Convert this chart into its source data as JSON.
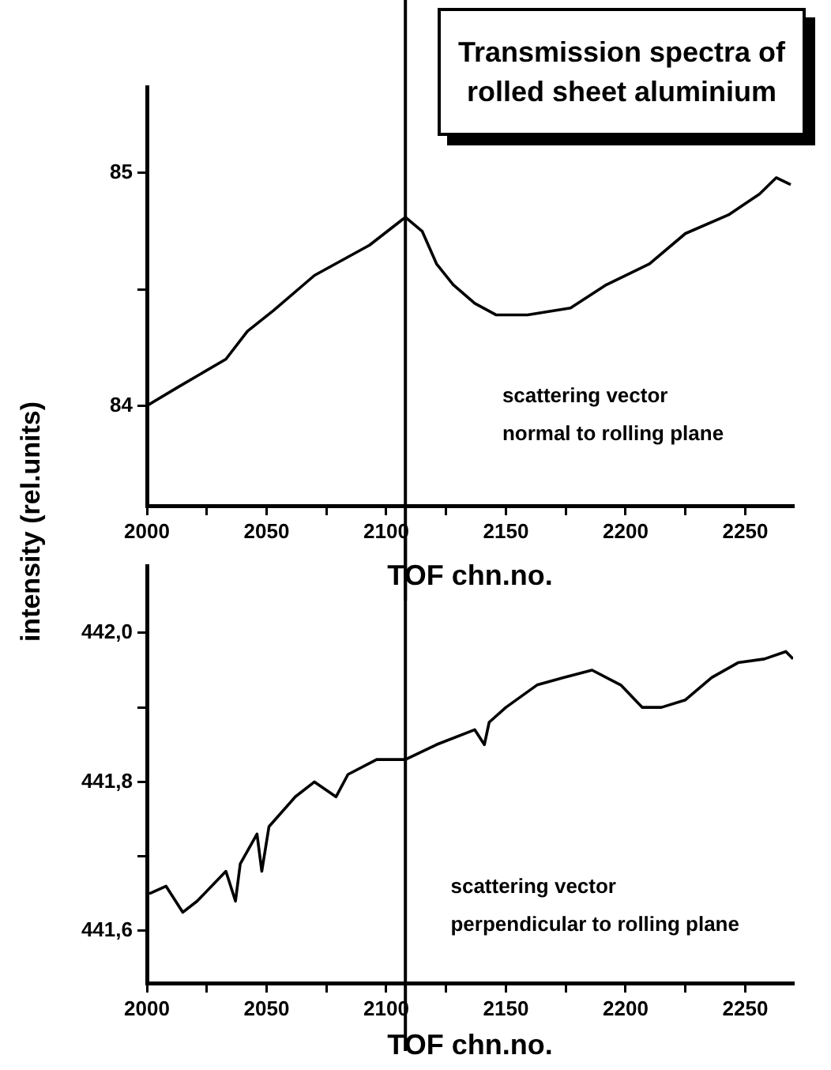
{
  "chart_data": [
    {
      "type": "line",
      "title": "Transmission spectra of rolled sheet aluminium",
      "ylabel": "intensity (rel.units)",
      "xlabel": "TOF chn.no.",
      "annotations": [
        "scattering vector",
        "normal to rolling plane"
      ],
      "marker": "none",
      "line_style": "solid",
      "legend": false,
      "grid": false,
      "xlim": [
        2000,
        2270
      ],
      "xticks": [
        2000,
        {
          "value": 2025,
          "label": null
        },
        2050,
        {
          "value": 2075,
          "label": null
        },
        2100,
        {
          "value": 2125,
          "label": null
        },
        2150,
        {
          "value": 2175,
          "label": null
        },
        2200,
        {
          "value": 2225,
          "label": null
        },
        2250
      ],
      "ylim": [
        83.57,
        85.37
      ],
      "yticks": [
        84,
        {
          "value": 84.5,
          "label": null
        },
        85
      ],
      "ref_lines": [
        {
          "axis": "x",
          "value": 2108,
          "color": "#000000"
        }
      ],
      "series": [
        {
          "color": "#000000",
          "x": [
            2000,
            2013,
            2033,
            2042,
            2053,
            2070,
            2093,
            2108,
            2115,
            2121,
            2128,
            2137,
            2146,
            2159,
            2177,
            2192,
            2210,
            2225,
            2243,
            2256,
            2263,
            2269
          ],
          "values": [
            84.0,
            84.08,
            84.2,
            84.32,
            84.41,
            84.56,
            84.69,
            84.81,
            84.75,
            84.61,
            84.52,
            84.44,
            84.39,
            84.39,
            84.42,
            84.52,
            84.61,
            84.74,
            84.82,
            84.91,
            84.98,
            84.95
          ]
        }
      ]
    },
    {
      "type": "line",
      "xlabel": "TOF chn.no.",
      "annotations": [
        "scattering vector",
        "perpendicular to rolling plane"
      ],
      "marker": "none",
      "line_style": "solid",
      "legend": false,
      "grid": false,
      "xlim": [
        2000,
        2270
      ],
      "xticks": [
        2000,
        {
          "value": 2025,
          "label": null
        },
        2050,
        {
          "value": 2075,
          "label": null
        },
        2100,
        {
          "value": 2125,
          "label": null
        },
        2150,
        {
          "value": 2175,
          "label": null
        },
        2200,
        {
          "value": 2225,
          "label": null
        },
        2250
      ],
      "ylim": [
        441.53,
        442.09
      ],
      "yticks": [
        {
          "value": 441.6,
          "label": "441,6"
        },
        {
          "value": 441.7,
          "label": null
        },
        {
          "value": 441.8,
          "label": "441,8"
        },
        {
          "value": 441.9,
          "label": null
        },
        {
          "value": 442.0,
          "label": "442,0"
        }
      ],
      "ref_lines": [
        {
          "axis": "x",
          "value": 2108,
          "color": "#000000"
        }
      ],
      "series": [
        {
          "color": "#000000",
          "x": [
            2001,
            2008,
            2015,
            2021,
            2033,
            2037,
            2039,
            2046,
            2048,
            2051,
            2062,
            2070,
            2079,
            2084,
            2096,
            2108,
            2121,
            2137,
            2141,
            2143,
            2150,
            2163,
            2174,
            2186,
            2198,
            2207,
            2215,
            2225,
            2236,
            2247,
            2258,
            2267,
            2270
          ],
          "values": [
            441.65,
            441.66,
            441.625,
            441.64,
            441.68,
            441.64,
            441.69,
            441.73,
            441.68,
            441.74,
            441.78,
            441.8,
            441.78,
            441.81,
            441.83,
            441.83,
            441.85,
            441.87,
            441.85,
            441.88,
            441.9,
            441.93,
            441.94,
            441.95,
            441.93,
            441.9,
            441.9,
            441.91,
            441.94,
            441.96,
            441.965,
            441.975,
            441.965
          ]
        }
      ]
    }
  ]
}
